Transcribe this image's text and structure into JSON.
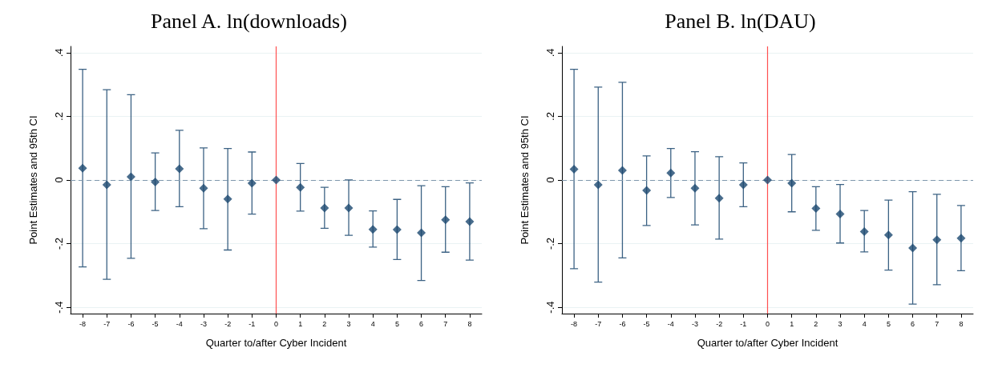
{
  "chart_data": [
    {
      "type": "scatter",
      "title": "Panel A. ln(downloads)",
      "xlabel": "Quarter to/after Cyber Incident",
      "ylabel": "Point Estimates and 95th CI",
      "x": [
        -8,
        -7,
        -6,
        -5,
        -4,
        -3,
        -2,
        -1,
        0,
        1,
        2,
        3,
        4,
        5,
        6,
        7,
        8
      ],
      "series": [
        {
          "color": "#1a476f",
          "values": [
            0.037,
            -0.015,
            0.01,
            -0.006,
            0.035,
            -0.026,
            -0.06,
            -0.01,
            0,
            -0.023,
            -0.088,
            -0.088,
            -0.155,
            -0.156,
            -0.166,
            -0.125,
            -0.131
          ],
          "errors": [
            [
              -0.273,
              0.348
            ],
            [
              -0.312,
              0.284
            ],
            [
              -0.246,
              0.268
            ],
            [
              -0.096,
              0.085
            ],
            [
              -0.084,
              0.156
            ],
            [
              -0.153,
              0.101
            ],
            [
              -0.22,
              0.099
            ],
            [
              -0.107,
              0.088
            ],
            null,
            [
              -0.098,
              0.052
            ],
            [
              -0.152,
              -0.023
            ],
            [
              -0.174,
              0.0
            ],
            [
              -0.211,
              -0.097
            ],
            [
              -0.25,
              -0.061
            ],
            [
              -0.316,
              -0.018
            ],
            [
              -0.227,
              -0.021
            ],
            [
              -0.252,
              -0.009
            ]
          ]
        }
      ],
      "xlim": [
        -8.5,
        8.5
      ],
      "xticks": [
        -8,
        -7,
        -6,
        -5,
        -4,
        -3,
        -2,
        -1,
        0,
        1,
        2,
        3,
        4,
        5,
        6,
        7,
        8
      ],
      "ylim": [
        -0.42,
        0.42
      ],
      "yticks": [
        {
          "value": -0.4,
          "label": "-.4"
        },
        {
          "value": -0.2,
          "label": "-.2"
        },
        0,
        {
          "value": 0.2,
          "label": ".2"
        },
        {
          "value": 0.4,
          "label": ".4"
        }
      ],
      "ref_lines": [
        {
          "axis": "x",
          "value": 0,
          "color": "#ff5050",
          "line_style": "solid"
        },
        {
          "axis": "y",
          "value": 0,
          "color": "#7f97ad",
          "line_style": "dashed"
        }
      ],
      "grid": "y",
      "marker": "diamond"
    },
    {
      "type": "scatter",
      "title": "Panel B. ln(DAU)",
      "xlabel": "Quarter to/after Cyber Incident",
      "ylabel": "Point Estimates and 95th CI",
      "x": [
        -8,
        -7,
        -6,
        -5,
        -4,
        -3,
        -2,
        -1,
        0,
        1,
        2,
        3,
        4,
        5,
        6,
        7,
        8
      ],
      "series": [
        {
          "color": "#1a476f",
          "values": [
            0.034,
            -0.015,
            0.03,
            -0.033,
            0.022,
            -0.026,
            -0.057,
            -0.015,
            0,
            -0.01,
            -0.089,
            -0.107,
            -0.162,
            -0.173,
            -0.214,
            -0.188,
            -0.183
          ],
          "errors": [
            [
              -0.279,
              0.348
            ],
            [
              -0.321,
              0.292
            ],
            [
              -0.245,
              0.307
            ],
            [
              -0.143,
              0.076
            ],
            [
              -0.055,
              0.099
            ],
            [
              -0.141,
              0.089
            ],
            [
              -0.186,
              0.073
            ],
            [
              -0.084,
              0.054
            ],
            null,
            [
              -0.1,
              0.08
            ],
            [
              -0.158,
              -0.021
            ],
            [
              -0.198,
              -0.014
            ],
            [
              -0.226,
              -0.096
            ],
            [
              -0.283,
              -0.063
            ],
            [
              -0.39,
              -0.037
            ],
            [
              -0.329,
              -0.045
            ],
            [
              -0.285,
              -0.08
            ]
          ]
        }
      ],
      "xlim": [
        -8.5,
        8.5
      ],
      "xticks": [
        -8,
        -7,
        -6,
        -5,
        -4,
        -3,
        -2,
        -1,
        0,
        1,
        2,
        3,
        4,
        5,
        6,
        7,
        8
      ],
      "ylim": [
        -0.42,
        0.42
      ],
      "yticks": [
        {
          "value": -0.4,
          "label": "-.4"
        },
        {
          "value": -0.2,
          "label": "-.2"
        },
        0,
        {
          "value": 0.2,
          "label": ".2"
        },
        {
          "value": 0.4,
          "label": ".4"
        }
      ],
      "ref_lines": [
        {
          "axis": "x",
          "value": 0,
          "color": "#ff5050",
          "line_style": "solid"
        },
        {
          "axis": "y",
          "value": 0,
          "color": "#7f97ad",
          "line_style": "dashed"
        }
      ],
      "grid": "y",
      "marker": "diamond"
    }
  ]
}
